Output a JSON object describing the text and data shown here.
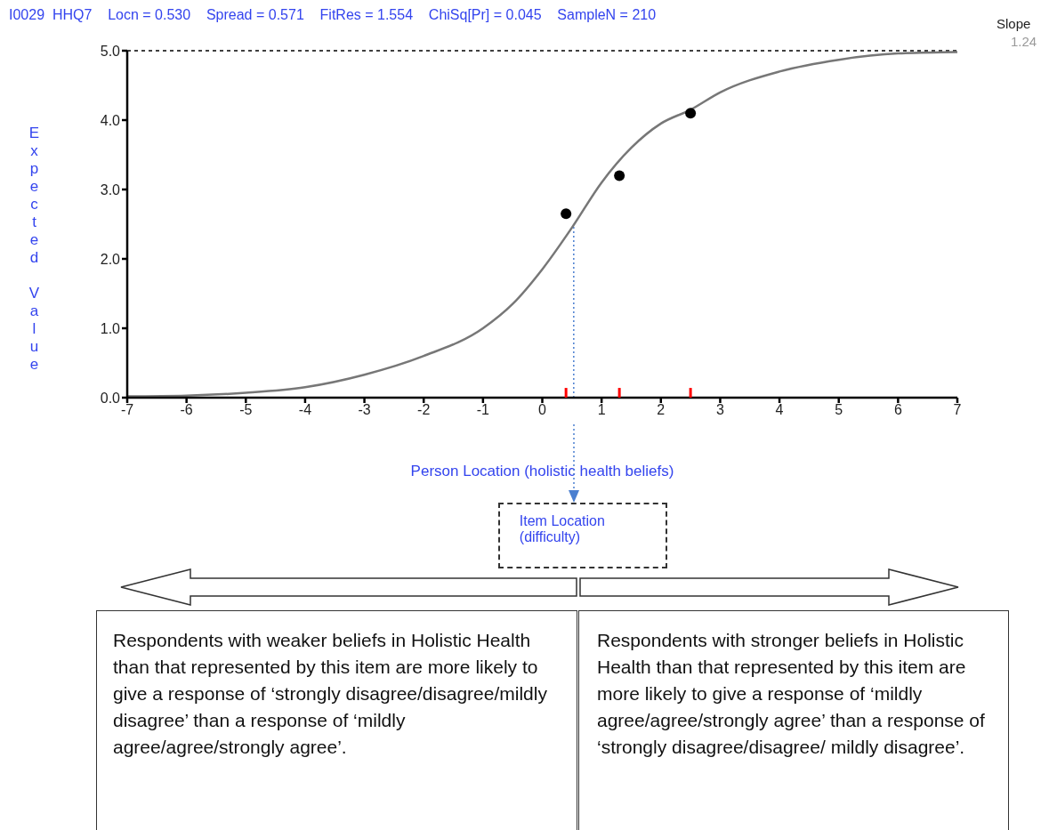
{
  "chart_data": {
    "type": "line",
    "title": "I0029  HHQ7    Locn = 0.530    Spread = 0.571    FitRes = 1.554    ChiSq[Pr] = 0.045    SampleN = 210",
    "xlabel": "Person Location  (holistic health beliefs)",
    "ylabel": "Expected Value",
    "xlim": [
      -7,
      7
    ],
    "xticks": [
      -7,
      -6,
      -5,
      -4,
      -3,
      -2,
      -1,
      0,
      1,
      2,
      3,
      4,
      5,
      6,
      7
    ],
    "ylim": [
      0,
      5
    ],
    "yticks": [
      {
        "value": 0,
        "label": "0.0"
      },
      {
        "value": 1,
        "label": "1.0"
      },
      {
        "value": 2,
        "label": "2.0"
      },
      {
        "value": 3,
        "label": "3.0"
      },
      {
        "value": 4,
        "label": "4.0"
      },
      {
        "value": 5,
        "label": "5.0"
      }
    ],
    "series": [
      {
        "color": "#777777",
        "x": [
          -7,
          -6,
          -5,
          -4,
          -3,
          -2,
          -1,
          -0.5,
          0,
          0.5,
          1,
          1.5,
          2,
          2.5,
          3,
          4,
          5,
          6,
          7
        ],
        "values": [
          0.02,
          0.03,
          0.07,
          0.15,
          0.33,
          0.6,
          1.0,
          1.35,
          1.85,
          2.45,
          3.1,
          3.6,
          3.95,
          4.15,
          4.4,
          4.7,
          4.87,
          4.96,
          4.98
        ]
      },
      {
        "type": "scatter",
        "color": "#000000",
        "marker": "circle",
        "x": [
          0.4,
          1.3,
          2.5
        ],
        "values": [
          2.65,
          3.2,
          4.1
        ]
      },
      {
        "type": "bar",
        "color": "#ff0000",
        "x": [
          0.4,
          1.3,
          2.5
        ],
        "values": [
          0.14,
          0.14,
          0.14
        ]
      }
    ],
    "ref_lines": [
      {
        "axis": "y",
        "value": 5,
        "color": "#000000",
        "line_style": "dashed"
      },
      {
        "axis": "x",
        "value": 0.53,
        "color": "#4a7fd0",
        "line_style": "dotted"
      }
    ],
    "annotations": [
      "Slope",
      "1.24",
      "Item Location (difficulty)",
      "Respondents with weaker beliefs in Holistic Health than that represented by this item are more likely to give a response of ‘strongly disagree/disagree/mildly disagree’ than a response of ‘mildly agree/agree/strongly agree’.",
      "Respondents with stronger beliefs in Holistic Health than that represented by this item are more likely to give a response of ‘mildly agree/agree/strongly agree’ than a response of ‘strongly disagree/disagree/ mildly disagree’."
    ]
  }
}
